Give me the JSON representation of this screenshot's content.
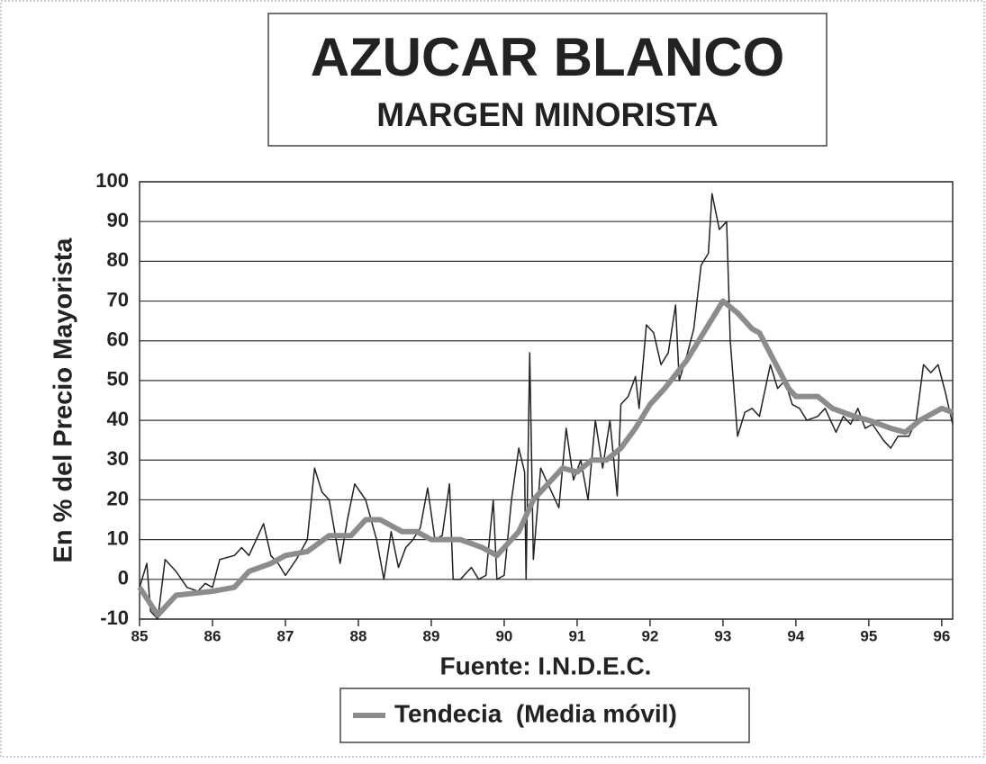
{
  "chart_data": {
    "type": "line",
    "title": "AZUCAR BLANCO",
    "subtitle": "MARGEN MINORISTA",
    "ylabel": "En % del Precio Mayorista",
    "xlabel": "Fuente: I.N.D.E.C.",
    "xlim": [
      85,
      96.15
    ],
    "xticks": [
      85,
      86,
      87,
      88,
      89,
      90,
      91,
      92,
      93,
      94,
      95,
      96
    ],
    "ylim": [
      -10,
      100
    ],
    "yticks": [
      -10,
      0,
      10,
      20,
      30,
      40,
      50,
      60,
      70,
      80,
      90,
      100
    ],
    "grid": true,
    "series": [
      {
        "color": "#222222",
        "width": 1.5,
        "x": [
          85.0,
          85.1,
          85.15,
          85.25,
          85.35,
          85.5,
          85.65,
          85.8,
          85.9,
          86.0,
          86.1,
          86.3,
          86.4,
          86.5,
          86.6,
          86.7,
          86.8,
          86.9,
          87.0,
          87.15,
          87.3,
          87.4,
          87.5,
          87.6,
          87.75,
          87.85,
          87.95,
          88.1,
          88.25,
          88.35,
          88.45,
          88.55,
          88.65,
          88.75,
          88.85,
          88.95,
          89.05,
          89.15,
          89.25,
          89.3,
          89.4,
          89.55,
          89.65,
          89.75,
          89.85,
          89.9,
          90.0,
          90.1,
          90.2,
          90.28,
          90.3,
          90.35,
          90.4,
          90.5,
          90.6,
          90.75,
          90.85,
          90.95,
          91.05,
          91.15,
          91.25,
          91.35,
          91.45,
          91.55,
          91.6,
          91.7,
          91.8,
          91.85,
          91.95,
          92.05,
          92.15,
          92.25,
          92.35,
          92.4,
          92.5,
          92.6,
          92.7,
          92.8,
          92.85,
          92.95,
          93.05,
          93.1,
          93.2,
          93.3,
          93.4,
          93.5,
          93.65,
          93.75,
          93.85,
          93.95,
          94.05,
          94.15,
          94.3,
          94.4,
          94.55,
          94.65,
          94.75,
          94.85,
          94.95,
          95.05,
          95.2,
          95.3,
          95.4,
          95.55,
          95.65,
          95.75,
          95.85,
          95.95,
          96.05,
          96.15
        ],
        "values": [
          -2,
          4,
          -8,
          -10,
          5,
          2,
          -2,
          -3,
          -1,
          -2,
          5,
          6,
          8,
          6,
          10,
          14,
          6,
          4,
          1,
          5,
          10,
          28,
          22,
          20,
          4,
          15,
          24,
          20,
          10,
          0,
          12,
          3,
          8,
          10,
          13,
          23,
          10,
          11,
          24,
          0,
          0,
          3,
          0,
          1,
          20,
          0,
          1,
          20,
          33,
          27,
          0,
          57,
          5,
          28,
          24,
          18,
          38,
          25,
          30,
          20,
          40,
          28,
          40,
          21,
          44,
          46,
          51,
          43,
          64,
          62,
          54,
          57,
          69,
          50,
          56,
          63,
          79,
          82,
          97,
          88,
          90,
          60,
          36,
          42,
          43,
          41,
          54,
          48,
          50,
          44,
          43,
          40,
          41,
          43,
          37,
          41,
          39,
          43,
          38,
          39,
          35,
          33,
          36,
          36,
          40,
          54,
          52,
          54,
          47,
          39
        ]
      },
      {
        "name": "Tendecia  (Media móvil)",
        "color": "#8c8c8c",
        "width": 6,
        "x": [
          85.0,
          85.25,
          85.5,
          86.0,
          86.3,
          86.5,
          86.8,
          87.0,
          87.3,
          87.6,
          87.9,
          88.1,
          88.3,
          88.6,
          88.8,
          89.0,
          89.4,
          89.7,
          89.9,
          90.0,
          90.2,
          90.4,
          90.6,
          90.8,
          91.0,
          91.2,
          91.4,
          91.6,
          91.8,
          92.0,
          92.2,
          92.5,
          92.8,
          93.0,
          93.2,
          93.4,
          93.5,
          93.7,
          93.9,
          94.0,
          94.3,
          94.5,
          94.8,
          95.0,
          95.3,
          95.5,
          95.7,
          95.9,
          96.0,
          96.15
        ],
        "values": [
          -2,
          -9,
          -4,
          -3,
          -2,
          2,
          4,
          6,
          7,
          11,
          11,
          15,
          15,
          12,
          12,
          10,
          10,
          8,
          6,
          8,
          12,
          20,
          24,
          28,
          27,
          30,
          30,
          33,
          38,
          44,
          48,
          55,
          64,
          70,
          67,
          63,
          62,
          55,
          48,
          46,
          46,
          43,
          41,
          40,
          38,
          37,
          40,
          42,
          43,
          42
        ]
      }
    ]
  }
}
